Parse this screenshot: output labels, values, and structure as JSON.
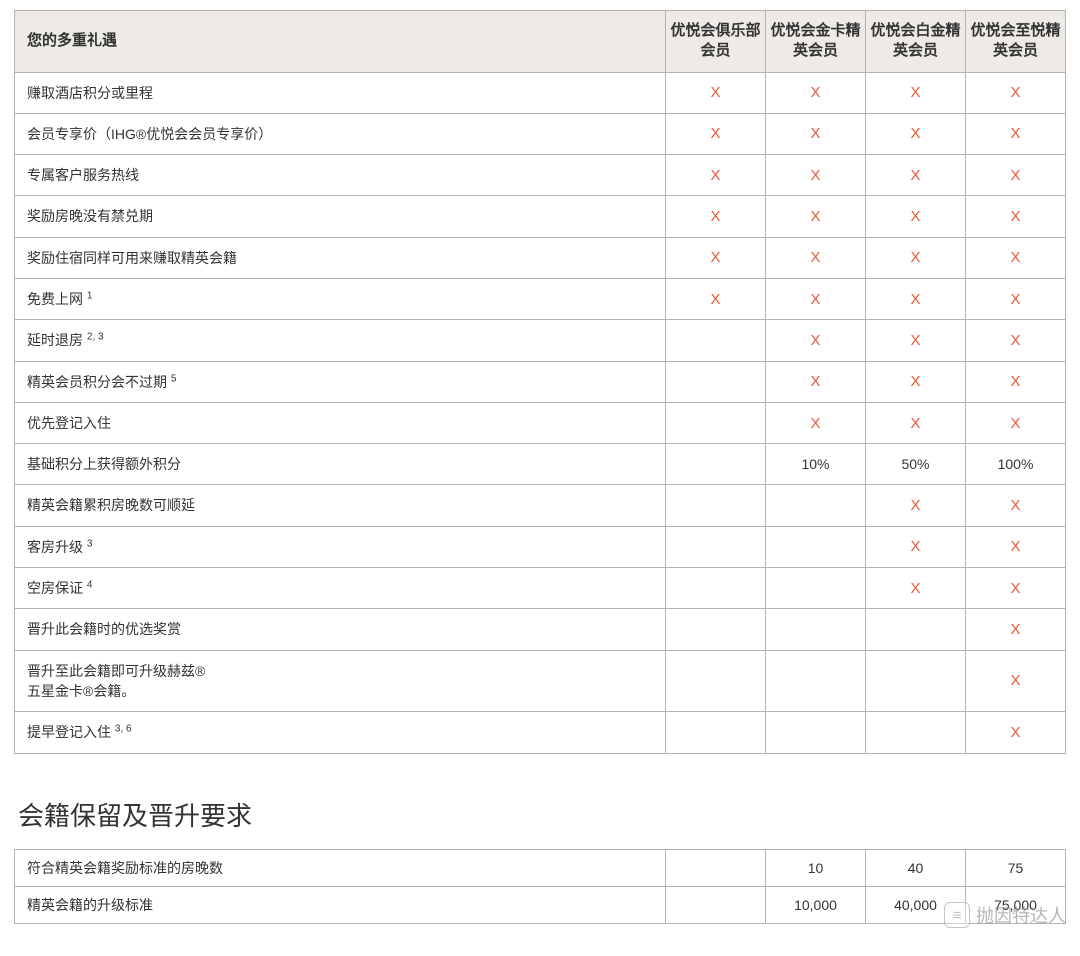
{
  "colors": {
    "header_bg": "#eeebe7",
    "border": "#b7b2ab",
    "text": "#333333",
    "check": "#e55a3c",
    "page_bg": "#ffffff"
  },
  "check_glyph": "X",
  "benefits_table": {
    "header_label": "您的多重礼遇",
    "tiers": [
      "优悦会俱乐部会员",
      "优悦会金卡精英会员",
      "优悦会白金精英会员",
      "优悦会至悦精英会员"
    ],
    "rows": [
      {
        "label": "赚取酒店积分或里程",
        "cells": [
          "X",
          "X",
          "X",
          "X"
        ]
      },
      {
        "label": "会员专享价（IHG®优悦会会员专享价）",
        "cells": [
          "X",
          "X",
          "X",
          "X"
        ]
      },
      {
        "label": "专属客户服务热线",
        "cells": [
          "X",
          "X",
          "X",
          "X"
        ]
      },
      {
        "label": "奖励房晚没有禁兑期",
        "cells": [
          "X",
          "X",
          "X",
          "X"
        ]
      },
      {
        "label": "奖励住宿同样可用来赚取精英会籍",
        "cells": [
          "X",
          "X",
          "X",
          "X"
        ]
      },
      {
        "label": "免费上网",
        "sup": "1",
        "cells": [
          "X",
          "X",
          "X",
          "X"
        ]
      },
      {
        "label": "延时退房",
        "sup": "2, 3",
        "cells": [
          "",
          "X",
          "X",
          "X"
        ]
      },
      {
        "label": "精英会员积分会不过期",
        "sup": "5",
        "cells": [
          "",
          "X",
          "X",
          "X"
        ]
      },
      {
        "label": "优先登记入住",
        "cells": [
          "",
          "X",
          "X",
          "X"
        ]
      },
      {
        "label": "基础积分上获得额外积分",
        "cells": [
          "",
          "10%",
          "50%",
          "100%"
        ]
      },
      {
        "label": "精英会籍累积房晚数可顺延",
        "cells": [
          "",
          "",
          "X",
          "X"
        ]
      },
      {
        "label": "客房升级",
        "sup": "3",
        "cells": [
          "",
          "",
          "X",
          "X"
        ]
      },
      {
        "label": "空房保证",
        "sup": "4",
        "cells": [
          "",
          "",
          "X",
          "X"
        ]
      },
      {
        "label": "晋升此会籍时的优选奖赏",
        "cells": [
          "",
          "",
          "",
          "X"
        ]
      },
      {
        "label": "晋升至此会籍即可升级赫兹®\n五星金卡®会籍。",
        "cells": [
          "",
          "",
          "",
          "X"
        ]
      },
      {
        "label": "提早登记入住",
        "sup": "3, 6",
        "cells": [
          "",
          "",
          "",
          "X"
        ]
      }
    ]
  },
  "requirements_section": {
    "title": "会籍保留及晋升要求",
    "rows": [
      {
        "label": "符合精英会籍奖励标准的房晚数",
        "cells": [
          "",
          "10",
          "40",
          "75"
        ]
      },
      {
        "label": "精英会籍的升级标准",
        "cells": [
          "",
          "10,000",
          "40,000",
          "75,000"
        ]
      }
    ]
  },
  "watermark": {
    "icon_glyph": "≡",
    "text": "抛因特达人"
  }
}
